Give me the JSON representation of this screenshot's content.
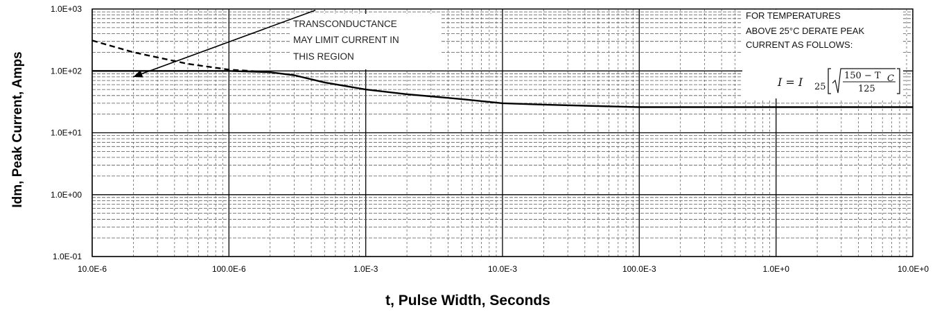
{
  "chart_data": {
    "type": "line",
    "xscale": "log",
    "yscale": "log",
    "xlim": [
      1e-05,
      10
    ],
    "ylim": [
      0.1,
      1000
    ],
    "xlabel": "t, Pulse Width, Seconds",
    "ylabel": "Idm, Peak Current, Amps",
    "x_tick_labels": [
      "10.0E-6",
      "100.0E-6",
      "1.0E-3",
      "10.0E-3",
      "100.0E-3",
      "1.0E+0",
      "10.0E+0"
    ],
    "x_tick_values": [
      1e-05,
      0.0001,
      0.001,
      0.01,
      0.1,
      1,
      10
    ],
    "y_tick_labels": [
      "1.0E-01",
      "1.0E+00",
      "1.0E+01",
      "1.0E+02",
      "1.0E+03"
    ],
    "y_tick_values": [
      0.1,
      1,
      10,
      100,
      1000
    ],
    "grid": true,
    "series": [
      {
        "style": "solid",
        "x": [
          1e-05,
          2e-05,
          5e-05,
          0.0001,
          0.0002,
          0.0003,
          0.0005,
          0.001,
          0.002,
          0.005,
          0.01,
          0.02,
          0.05,
          0.1,
          0.2,
          0.5,
          1,
          2,
          5,
          10
        ],
        "y": [
          100,
          100,
          100,
          100,
          95,
          85,
          65,
          50,
          42,
          35,
          30,
          28.5,
          27,
          26,
          26,
          26,
          26,
          26,
          26,
          26
        ]
      },
      {
        "style": "dashed",
        "x": [
          1e-05,
          2e-05,
          3e-05,
          5e-05,
          0.0001,
          0.0002
        ],
        "y": [
          310,
          200,
          165,
          130,
          105,
          95
        ]
      }
    ],
    "annotations": [
      {
        "lines": [
          "TRANSCONDUCTANCE",
          "MAY LIMIT CURRENT IN",
          "THIS REGION"
        ],
        "arrow_from": [
          0.00015,
          300
        ],
        "arrow_to": [
          2e-05,
          80
        ]
      }
    ],
    "note": {
      "lines": [
        "FOR TEMPERATURES",
        "ABOVE 25°C DERATE PEAK",
        "CURRENT AS FOLLOWS:"
      ],
      "formula": {
        "lhs": "I = I",
        "lhs_sub": "25",
        "numerator": "150 − T",
        "numerator_sub": "C",
        "denominator": "125"
      }
    }
  }
}
